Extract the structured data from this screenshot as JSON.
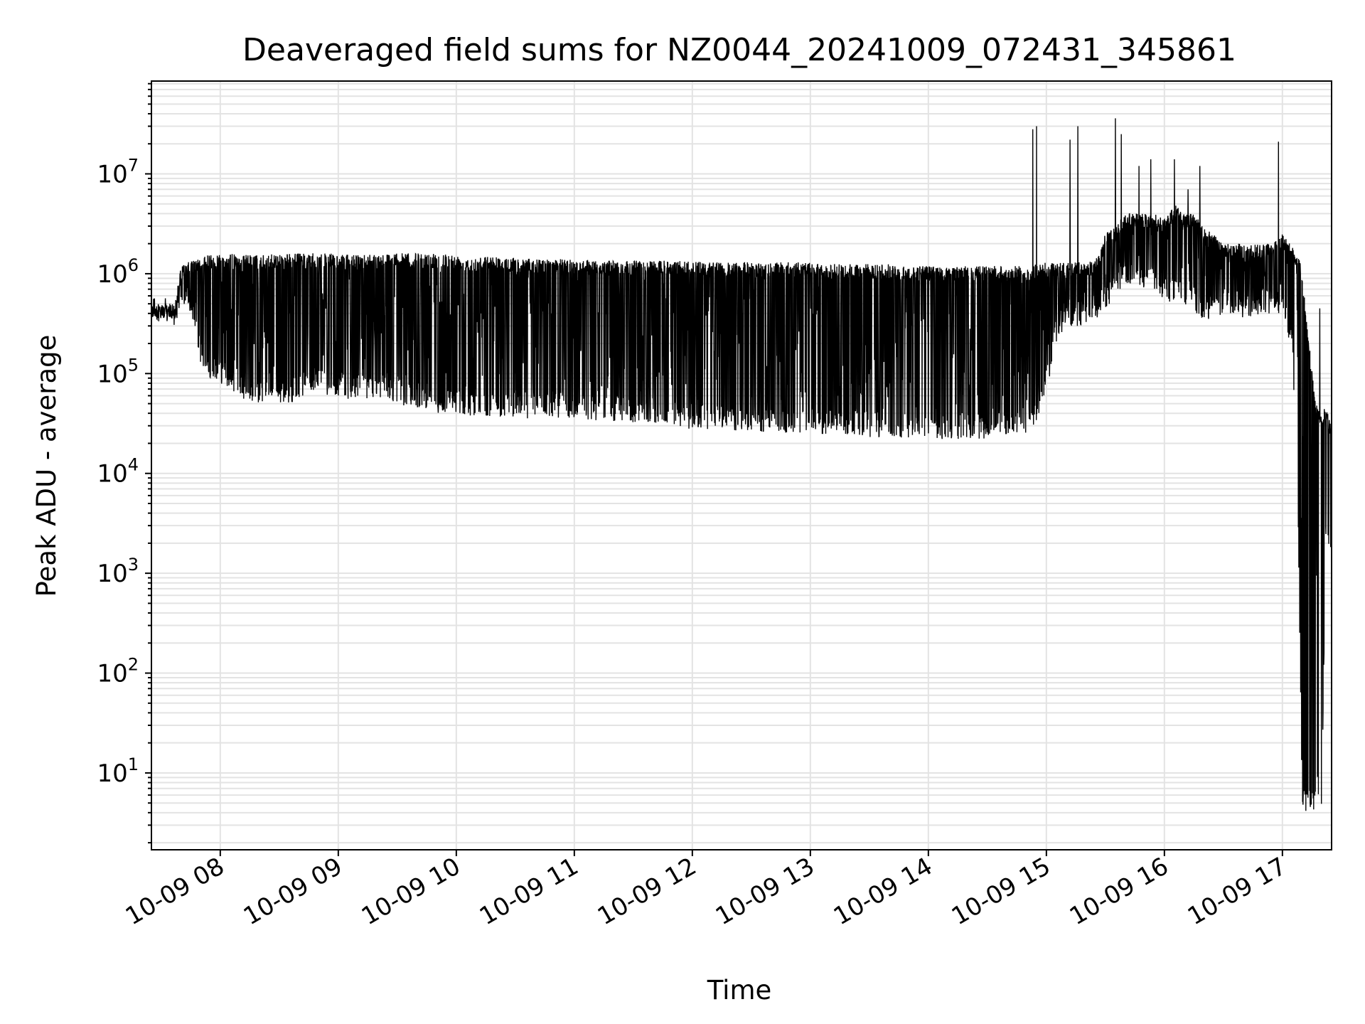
{
  "chart_data": {
    "type": "line",
    "title": "Deaveraged field sums for NZ0044_20241009_072431_345861",
    "xlabel": "Time",
    "ylabel": "Peak ADU - average",
    "yscale": "log",
    "grid": true,
    "line_color": "#000000",
    "grid_color": "#e3e3e3",
    "xlim": [
      "10-09 07:25",
      "10-09 17:25"
    ],
    "ylim": [
      1.7,
      85000000
    ],
    "x_ticks": [
      "10-09 08",
      "10-09 09",
      "10-09 10",
      "10-09 11",
      "10-09 12",
      "10-09 13",
      "10-09 14",
      "10-09 15",
      "10-09 16",
      "10-09 17"
    ],
    "y_ticks": [
      {
        "base": "10",
        "exp": "1",
        "value": 10
      },
      {
        "base": "10",
        "exp": "2",
        "value": 100
      },
      {
        "base": "10",
        "exp": "3",
        "value": 1000
      },
      {
        "base": "10",
        "exp": "4",
        "value": 10000
      },
      {
        "base": "10",
        "exp": "5",
        "value": 100000
      },
      {
        "base": "10",
        "exp": "6",
        "value": 1000000
      },
      {
        "base": "10",
        "exp": "7",
        "value": 10000000
      }
    ],
    "series": [
      {
        "x_time_of_day": [
          "07:25",
          "07:37",
          "07:40",
          "07:47",
          "07:50",
          "07:55",
          "08:00",
          "08:05",
          "08:10",
          "08:15",
          "08:20",
          "08:25",
          "08:30",
          "08:35",
          "08:40",
          "08:45",
          "08:50",
          "08:55",
          "09:00",
          "09:05",
          "09:10",
          "09:15",
          "09:20",
          "09:25",
          "09:30",
          "09:35",
          "09:40",
          "09:45",
          "09:50",
          "09:55",
          "10:00",
          "10:05",
          "10:10",
          "10:15",
          "10:20",
          "10:25",
          "10:30",
          "10:35",
          "10:40",
          "10:45",
          "10:50",
          "10:55",
          "11:00",
          "11:05",
          "11:10",
          "11:15",
          "11:20",
          "11:25",
          "11:30",
          "11:35",
          "11:40",
          "11:45",
          "11:50",
          "11:55",
          "12:00",
          "12:05",
          "12:10",
          "12:15",
          "12:20",
          "12:25",
          "12:30",
          "12:35",
          "12:40",
          "12:45",
          "12:50",
          "12:55",
          "13:00",
          "13:05",
          "13:10",
          "13:15",
          "13:20",
          "13:25",
          "13:30",
          "13:35",
          "13:40",
          "13:45",
          "13:50",
          "13:55",
          "14:00",
          "14:05",
          "14:10",
          "14:15",
          "14:20",
          "14:25",
          "14:30",
          "14:35",
          "14:40",
          "14:45",
          "14:50",
          "14:55",
          "15:00",
          "15:05",
          "15:10",
          "15:15",
          "15:20",
          "15:25",
          "15:30",
          "15:35",
          "15:40",
          "15:45",
          "15:50",
          "15:55",
          "16:00",
          "16:05",
          "16:10",
          "16:15",
          "16:20",
          "16:25",
          "16:30",
          "16:35",
          "16:40",
          "16:45",
          "16:50",
          "16:55",
          "17:00",
          "17:05",
          "17:08",
          "17:10",
          "17:12",
          "17:17",
          "17:20",
          "17:22",
          "17:25"
        ],
        "peak_high": [
          500000,
          500000,
          1200000,
          1400000,
          1400000,
          1600000,
          1600000,
          1600000,
          1550000,
          1550000,
          1550000,
          1550000,
          1600000,
          1600000,
          1600000,
          1600000,
          1600000,
          1600000,
          1550000,
          1550000,
          1550000,
          1600000,
          1600000,
          1600000,
          1600000,
          1600000,
          1600000,
          1600000,
          1600000,
          1600000,
          1550000,
          1500000,
          1500000,
          1500000,
          1500000,
          1450000,
          1450000,
          1450000,
          1400000,
          1400000,
          1400000,
          1400000,
          1400000,
          1400000,
          1400000,
          1350000,
          1350000,
          1350000,
          1350000,
          1350000,
          1350000,
          1350000,
          1350000,
          1350000,
          1350000,
          1300000,
          1300000,
          1300000,
          1300000,
          1300000,
          1300000,
          1300000,
          1300000,
          1300000,
          1300000,
          1300000,
          1300000,
          1250000,
          1250000,
          1250000,
          1250000,
          1250000,
          1250000,
          1250000,
          1250000,
          1200000,
          1200000,
          1200000,
          1200000,
          1200000,
          1200000,
          1200000,
          1200000,
          1200000,
          1200000,
          1200000,
          1200000,
          1200000,
          1200000,
          1250000,
          1300000,
          1300000,
          1300000,
          1300000,
          1300000,
          1400000,
          2500000,
          3000000,
          4000000,
          4000000,
          4000000,
          4000000,
          3500000,
          5000000,
          4000000,
          4000000,
          3000000,
          2500000,
          2000000,
          2000000,
          2000000,
          2000000,
          2000000,
          2000000,
          2500000,
          2000000,
          1500000,
          1200000,
          400000,
          50000,
          40000,
          50000,
          30000
        ],
        "peak_low": [
          350000,
          300000,
          500000,
          300000,
          120000,
          90000,
          80000,
          70000,
          60000,
          50000,
          50000,
          50000,
          50000,
          50000,
          55000,
          65000,
          70000,
          60000,
          60000,
          55000,
          55000,
          55000,
          55000,
          55000,
          50000,
          45000,
          45000,
          45000,
          40000,
          40000,
          38000,
          38000,
          38000,
          38000,
          36000,
          36000,
          36000,
          35000,
          35000,
          35000,
          35000,
          35000,
          35000,
          34000,
          34000,
          34000,
          33000,
          33000,
          32000,
          32000,
          32000,
          30000,
          30000,
          28000,
          28000,
          28000,
          27000,
          27000,
          27000,
          26000,
          26000,
          26000,
          25000,
          25000,
          25000,
          25000,
          25000,
          24000,
          24000,
          24000,
          24000,
          24000,
          23000,
          23000,
          23000,
          23000,
          22000,
          22000,
          22000,
          22000,
          22000,
          22000,
          22000,
          22000,
          22000,
          23000,
          24000,
          25000,
          25000,
          30000,
          60000,
          200000,
          300000,
          300000,
          300000,
          300000,
          400000,
          600000,
          800000,
          800000,
          700000,
          700000,
          500000,
          500000,
          500000,
          400000,
          350000,
          350000,
          400000,
          400000,
          350000,
          350000,
          400000,
          400000,
          400000,
          150000,
          3000,
          4,
          4,
          4,
          4,
          2000,
          1800
        ],
        "spikes": [
          {
            "time": "14:53",
            "value": 28000000
          },
          {
            "time": "14:55",
            "value": 30000000
          },
          {
            "time": "15:12",
            "value": 22000000
          },
          {
            "time": "15:16",
            "value": 30000000
          },
          {
            "time": "15:35",
            "value": 36000000
          },
          {
            "time": "15:38",
            "value": 25000000
          },
          {
            "time": "15:47",
            "value": 12000000
          },
          {
            "time": "15:53",
            "value": 14000000
          },
          {
            "time": "16:05",
            "value": 14000000
          },
          {
            "time": "16:12",
            "value": 7000000
          },
          {
            "time": "16:18",
            "value": 12000000
          },
          {
            "time": "16:58",
            "value": 21000000
          },
          {
            "time": "17:19",
            "value": 450000
          }
        ]
      }
    ]
  }
}
